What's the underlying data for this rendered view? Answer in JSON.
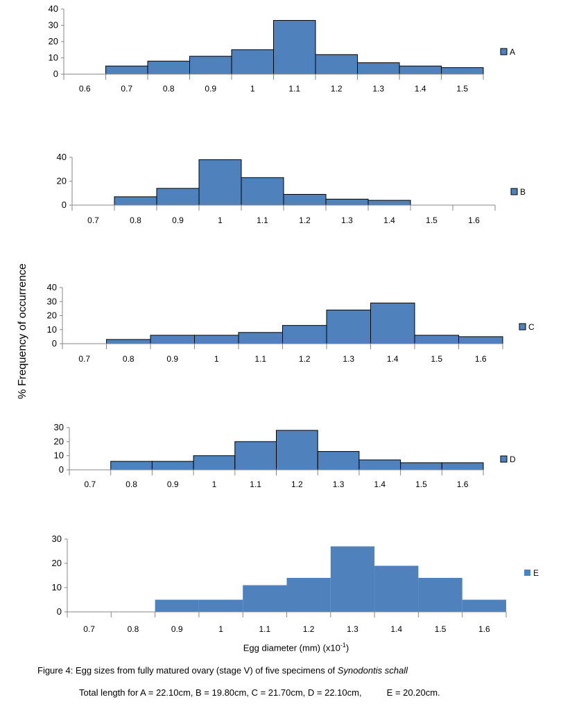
{
  "chart_data": [
    {
      "type": "bar",
      "legend": "A",
      "categories": [
        "0.6",
        "0.7",
        "0.8",
        "0.9",
        "1",
        "1.1",
        "1.2",
        "1.3",
        "1.4",
        "1.5"
      ],
      "values": [
        0,
        5,
        8,
        11,
        15,
        33,
        12,
        7,
        5,
        4
      ],
      "ylim": [
        0,
        40
      ],
      "yticks": [
        0,
        10,
        20,
        30,
        40
      ],
      "legend_position": "right"
    },
    {
      "type": "bar",
      "legend": "B",
      "categories": [
        "0.7",
        "0.8",
        "0.9",
        "1",
        "1.1",
        "1.2",
        "1.3",
        "1.4",
        "1.5",
        "1.6"
      ],
      "values": [
        0,
        7,
        14,
        38,
        23,
        9,
        5,
        4,
        0,
        0
      ],
      "ylim": [
        0,
        40
      ],
      "yticks": [
        0,
        20,
        40
      ],
      "legend_position": "right"
    },
    {
      "type": "bar",
      "legend": "C",
      "categories": [
        "0.7",
        "0.8",
        "0.9",
        "1",
        "1.1",
        "1.2",
        "1.3",
        "1.4",
        "1.5",
        "1.6"
      ],
      "values": [
        0,
        3,
        6,
        6,
        8,
        13,
        24,
        29,
        6,
        5
      ],
      "ylim": [
        0,
        40
      ],
      "yticks": [
        0,
        10,
        20,
        30,
        40
      ],
      "legend_position": "right"
    },
    {
      "type": "bar",
      "legend": "D",
      "categories": [
        "0.7",
        "0.8",
        "0.9",
        "1",
        "1.1",
        "1.2",
        "1.3",
        "1.4",
        "1.5",
        "1.6"
      ],
      "values": [
        0,
        6,
        6,
        10,
        20,
        28,
        13,
        7,
        5,
        5
      ],
      "ylim": [
        0,
        30
      ],
      "yticks": [
        0,
        10,
        20,
        30
      ],
      "legend_position": "right"
    },
    {
      "type": "bar",
      "legend": "E",
      "categories": [
        "0.7",
        "0.8",
        "0.9",
        "1",
        "1.1",
        "1.2",
        "1.3",
        "1.4",
        "1.5",
        "1.6"
      ],
      "values": [
        0,
        0,
        5,
        5,
        11,
        14,
        27,
        19,
        14,
        5
      ],
      "ylim": [
        0,
        30
      ],
      "yticks": [
        0,
        10,
        20,
        30
      ],
      "legend_position": "right"
    }
  ],
  "ylabel": "% Frequency of occurrence",
  "xlabel": "Egg diameter (mm) (x10",
  "xlabel_sup": "-1",
  "xlabel_end": ")",
  "caption": "Figure 4: Egg sizes from fully matured ovary (stage V) of five specimens of ",
  "caption_species": "Synodontis schall",
  "total_length": "Total length for A = 22.10cm, B = 19.80cm, C = 21.70cm, D = 22.10cm,          E = 20.20cm.",
  "colors": {
    "bar": "#4f81bd",
    "axis": "#868686"
  }
}
